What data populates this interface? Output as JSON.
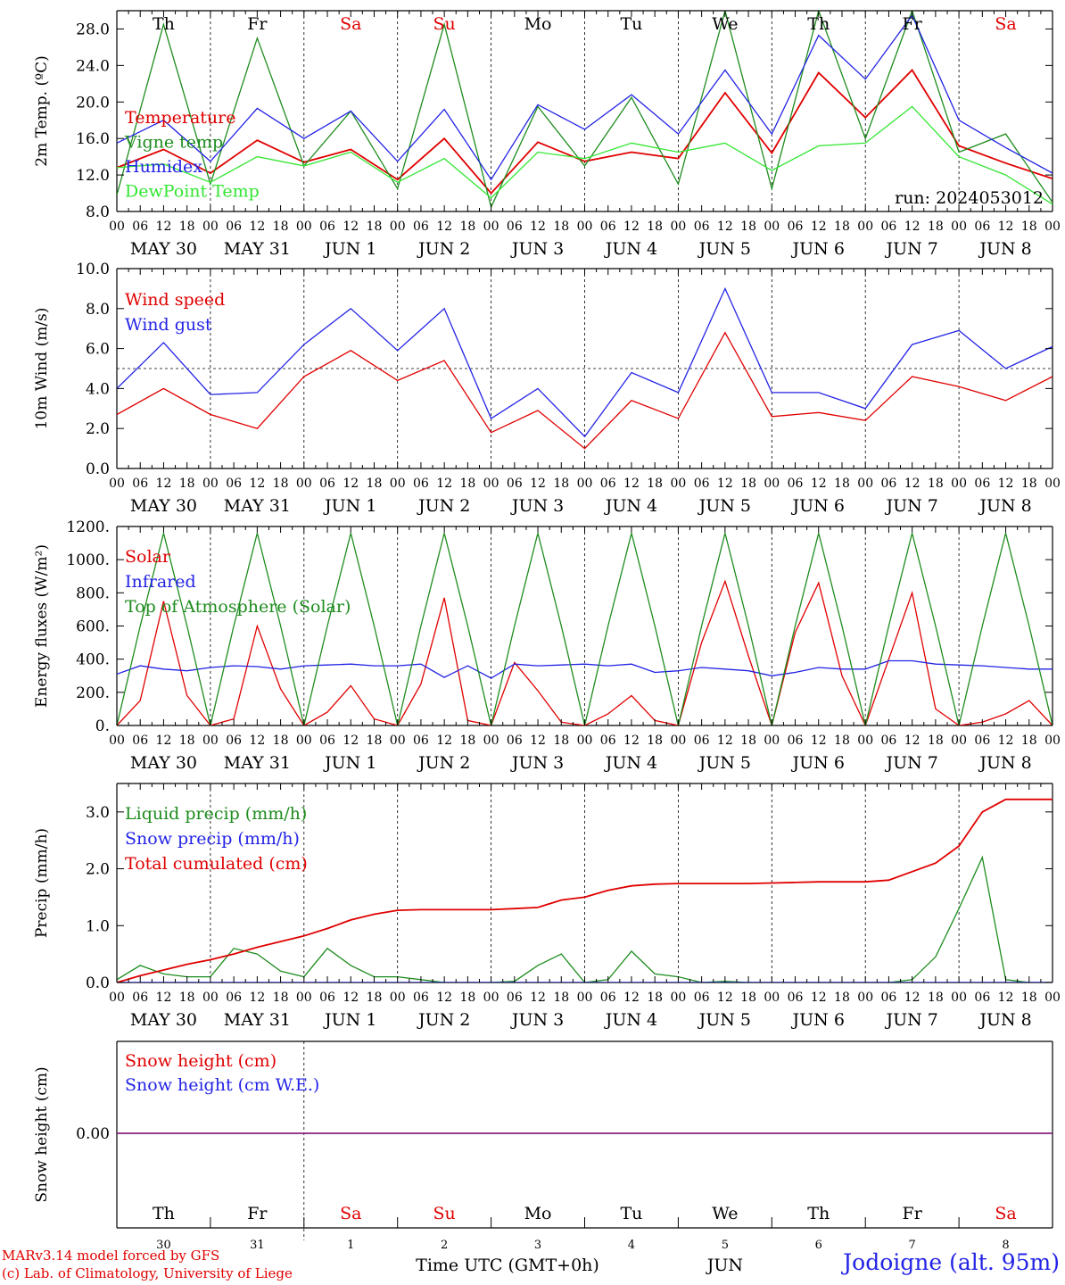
{
  "chart_data": [
    {
      "type": "line",
      "ylabel": "2m Temp. (ºC)",
      "ylim": [
        8,
        30
      ],
      "yticks": [
        "8.0",
        "12.0",
        "16.0",
        "20.0",
        "24.0",
        "28.0"
      ],
      "x_hours": [
        0,
        12,
        24,
        36,
        48,
        60,
        72,
        84,
        96,
        108,
        120,
        132,
        144,
        156,
        168,
        180,
        192,
        204,
        216,
        228,
        240
      ],
      "run_label": "run: 2024053012",
      "series": [
        {
          "name": "Temperature",
          "color": "#e00000",
          "values": [
            12.8,
            14.8,
            12.2,
            15.8,
            13.4,
            14.8,
            11.5,
            16.0,
            10.0,
            15.6,
            13.5,
            14.5,
            13.8,
            21.0,
            14.4,
            23.2,
            18.3,
            23.5,
            15.2,
            13.3,
            11.6
          ]
        },
        {
          "name": "Vigne temp",
          "color": "#1e8c1e",
          "values": [
            9.8,
            28.5,
            11.0,
            27.0,
            13.0,
            19.0,
            10.5,
            28.5,
            8.5,
            19.5,
            13.0,
            20.5,
            11.0,
            30.0,
            10.5,
            30.0,
            16.0,
            30.0,
            14.5,
            16.5,
            9.0
          ]
        },
        {
          "name": "Humidex",
          "color": "#2323e6",
          "values": [
            15.5,
            18.0,
            13.5,
            19.3,
            16.0,
            19.0,
            13.5,
            19.2,
            11.5,
            19.7,
            17.0,
            20.8,
            16.5,
            23.5,
            16.5,
            27.3,
            22.5,
            29.5,
            18.0,
            15.0,
            12.2
          ]
        },
        {
          "name": "DewPoint Temp",
          "color": "#33e633",
          "values": [
            12.8,
            13.2,
            11.2,
            14.0,
            13.0,
            14.5,
            11.2,
            13.8,
            9.5,
            14.5,
            13.8,
            15.5,
            14.5,
            15.5,
            12.5,
            15.2,
            15.5,
            19.5,
            14.0,
            12.0,
            8.8
          ]
        }
      ]
    },
    {
      "type": "line",
      "ylabel": "10m Wind (m/s)",
      "ylim": [
        0,
        10
      ],
      "yticks": [
        "0.0",
        "2.0",
        "4.0",
        "6.0",
        "8.0",
        "10.0"
      ],
      "reference_line": 5,
      "x_hours": [
        0,
        12,
        24,
        36,
        48,
        60,
        72,
        84,
        96,
        108,
        120,
        132,
        144,
        156,
        168,
        180,
        192,
        204,
        216,
        228,
        240
      ],
      "series": [
        {
          "name": "Wind speed",
          "color": "#e00000",
          "values": [
            2.7,
            4.0,
            2.7,
            2.0,
            4.6,
            5.9,
            4.4,
            5.4,
            1.8,
            2.9,
            1.0,
            3.4,
            2.5,
            6.8,
            2.6,
            2.8,
            2.4,
            4.6,
            4.1,
            3.4,
            4.6
          ]
        },
        {
          "name": "Wind gust",
          "color": "#2323e6",
          "values": [
            4.0,
            6.3,
            3.7,
            3.8,
            6.2,
            8.0,
            5.9,
            8.0,
            2.5,
            4.0,
            1.6,
            4.8,
            3.8,
            9.0,
            3.8,
            3.8,
            3.0,
            6.2,
            6.9,
            5.0,
            6.1
          ]
        }
      ]
    },
    {
      "type": "line",
      "ylabel": "Energy fluxes (W/m²)",
      "ylim": [
        0,
        1200
      ],
      "yticks": [
        "0.",
        "200.",
        "400.",
        "600.",
        "800.",
        "1000.",
        "1200."
      ],
      "x_hours": [
        0,
        6,
        12,
        18,
        24,
        30,
        36,
        42,
        48,
        54,
        60,
        66,
        72,
        78,
        84,
        90,
        96,
        102,
        108,
        114,
        120,
        126,
        132,
        138,
        144,
        150,
        156,
        162,
        168,
        174,
        180,
        186,
        192,
        198,
        204,
        210,
        216,
        222,
        228,
        234,
        240
      ],
      "series": [
        {
          "name": "Solar",
          "color": "#e00000",
          "values": [
            0,
            150,
            750,
            180,
            0,
            40,
            600,
            220,
            0,
            80,
            240,
            40,
            0,
            250,
            770,
            30,
            0,
            380,
            210,
            20,
            0,
            70,
            180,
            30,
            0,
            500,
            870,
            420,
            0,
            560,
            860,
            300,
            0,
            400,
            800,
            100,
            0,
            20,
            70,
            150,
            0
          ]
        },
        {
          "name": "Infrared",
          "color": "#2323e6",
          "values": [
            310,
            360,
            340,
            330,
            350,
            360,
            355,
            340,
            360,
            365,
            370,
            360,
            360,
            370,
            290,
            360,
            285,
            370,
            360,
            365,
            370,
            360,
            370,
            320,
            330,
            350,
            340,
            330,
            300,
            320,
            350,
            340,
            340,
            390,
            390,
            370,
            365,
            360,
            350,
            340,
            340
          ]
        },
        {
          "name": "Top of Atmosphere (Solar)",
          "color": "#1e8c1e",
          "values": [
            0,
            600,
            1160,
            600,
            0,
            600,
            1160,
            600,
            0,
            600,
            1160,
            600,
            0,
            600,
            1160,
            600,
            0,
            600,
            1160,
            600,
            0,
            600,
            1160,
            600,
            0,
            600,
            1160,
            600,
            0,
            600,
            1160,
            600,
            0,
            600,
            1160,
            600,
            0,
            600,
            1160,
            600,
            0
          ]
        }
      ]
    },
    {
      "type": "line",
      "ylabel": "Precip (mm/h)",
      "ylim": [
        0,
        3.5
      ],
      "yticks": [
        "0.0",
        "1.0",
        "2.0",
        "3.0"
      ],
      "x_hours": [
        0,
        6,
        12,
        18,
        24,
        30,
        36,
        42,
        48,
        54,
        60,
        66,
        72,
        78,
        84,
        90,
        96,
        102,
        108,
        114,
        120,
        126,
        132,
        138,
        144,
        150,
        156,
        162,
        168,
        174,
        180,
        186,
        192,
        198,
        204,
        210,
        216,
        222,
        228,
        234,
        240
      ],
      "series": [
        {
          "name": "Liquid precip (mm/h)",
          "color": "#1e8c1e",
          "values": [
            0.05,
            0.3,
            0.15,
            0.1,
            0.1,
            0.6,
            0.5,
            0.2,
            0.1,
            0.6,
            0.3,
            0.1,
            0.1,
            0.05,
            0,
            0,
            0,
            0.02,
            0.3,
            0.5,
            0,
            0.05,
            0.55,
            0.15,
            0.1,
            0,
            0.02,
            0,
            0,
            0,
            0,
            0,
            0,
            0,
            0.05,
            0.45,
            1.3,
            2.2,
            0.05,
            0,
            0
          ]
        },
        {
          "name": "Snow precip (mm/h)",
          "color": "#2323e6",
          "values": [
            0,
            0,
            0,
            0,
            0,
            0,
            0,
            0,
            0,
            0,
            0,
            0,
            0,
            0,
            0,
            0,
            0,
            0,
            0,
            0,
            0,
            0,
            0,
            0,
            0,
            0,
            0,
            0,
            0,
            0,
            0,
            0,
            0,
            0,
            0,
            0,
            0,
            0,
            0,
            0,
            0
          ]
        },
        {
          "name": "Total cumulated (cm)",
          "color": "#e00000",
          "values": [
            0,
            0.12,
            0.22,
            0.32,
            0.4,
            0.5,
            0.62,
            0.72,
            0.82,
            0.95,
            1.1,
            1.2,
            1.27,
            1.28,
            1.28,
            1.28,
            1.28,
            1.3,
            1.32,
            1.45,
            1.5,
            1.62,
            1.7,
            1.73,
            1.74,
            1.74,
            1.74,
            1.74,
            1.75,
            1.76,
            1.77,
            1.77,
            1.77,
            1.8,
            1.95,
            2.1,
            2.4,
            3.0,
            3.22,
            3.22,
            3.22
          ]
        }
      ]
    },
    {
      "type": "line",
      "ylabel": "Snow height (cm)",
      "ytick": "0.00",
      "x_hours": [
        0,
        240
      ],
      "series": [
        {
          "name": "Snow height (cm)",
          "color": "#e00000",
          "values": [
            0,
            0
          ]
        },
        {
          "name": "Snow height (cm W.E.)",
          "color": "#2323e6",
          "values": [
            0,
            0
          ]
        }
      ]
    }
  ],
  "hour_tick_labels": [
    "00",
    "06",
    "12",
    "18"
  ],
  "date_labels": [
    "MAY 30",
    "MAY 31",
    "JUN  1",
    "JUN  2",
    "JUN  3",
    "JUN  4",
    "JUN  5",
    "JUN  6",
    "JUN  7",
    "JUN  8"
  ],
  "weekday_labels": [
    "Th",
    "Fr",
    "Sa",
    "Su",
    "Mo",
    "Tu",
    "We",
    "Th",
    "Fr",
    "Sa"
  ],
  "weekday_colors": [
    "#000000",
    "#000000",
    "#e00000",
    "#e00000",
    "#000000",
    "#000000",
    "#000000",
    "#000000",
    "#000000",
    "#e00000"
  ],
  "day_numbers": [
    "30",
    "31",
    "1",
    "2",
    "3",
    "4",
    "5",
    "6",
    "7",
    "8"
  ],
  "month_label": "JUN",
  "xlabel": "Time UTC (GMT+0h)",
  "footer": {
    "credit_line1": "MARv3.14 model forced by GFS",
    "credit_line2": "(c) Lab. of Climatology, University of Liege",
    "station": "Jodoigne (alt. 95m)"
  },
  "colors": {
    "red": "#e00000",
    "blue": "#2323e6",
    "green": "#1e8c1e",
    "lightgreen": "#33e633",
    "snow_line": "#7a2aa0"
  }
}
